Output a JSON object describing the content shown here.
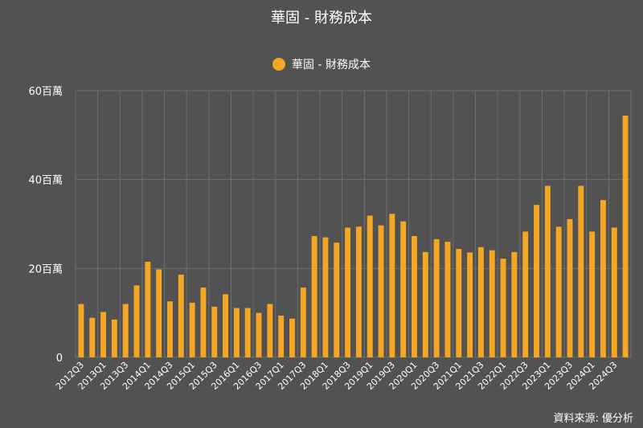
{
  "colors": {
    "background": "#525252",
    "bar": "#F5A623",
    "grid": "#6e6e6e",
    "text": "#ffffff"
  },
  "source": "資料來源: 優分析",
  "legend_icon": "circle-marker",
  "chart_data": {
    "type": "bar",
    "title": "華固 - 財務成本",
    "legend_position": "top-center",
    "grid": true,
    "ylim": [
      0,
      60
    ],
    "yticks": [
      0,
      20,
      40,
      60
    ],
    "ytick_labels": [
      "0",
      "20百萬",
      "40百萬",
      "60百萬"
    ],
    "categories": [
      "2012Q3",
      "2012Q4",
      "2013Q1",
      "2013Q2",
      "2013Q3",
      "2013Q4",
      "2014Q1",
      "2014Q2",
      "2014Q3",
      "2014Q4",
      "2015Q1",
      "2015Q2",
      "2015Q3",
      "2015Q4",
      "2016Q1",
      "2016Q2",
      "2016Q3",
      "2016Q4",
      "2017Q1",
      "2017Q2",
      "2017Q3",
      "2017Q4",
      "2018Q1",
      "2018Q2",
      "2018Q3",
      "2018Q4",
      "2019Q1",
      "2019Q2",
      "2019Q3",
      "2019Q4",
      "2020Q1",
      "2020Q2",
      "2020Q3",
      "2020Q4",
      "2021Q1",
      "2021Q2",
      "2021Q3",
      "2021Q4",
      "2022Q1",
      "2022Q2",
      "2022Q3",
      "2022Q4",
      "2023Q1",
      "2023Q2",
      "2023Q3",
      "2023Q4",
      "2024Q1",
      "2024Q2",
      "2024Q3",
      "2024Q4"
    ],
    "xtick_labels": [
      "2012Q3",
      "2013Q1",
      "2013Q3",
      "2014Q1",
      "2014Q3",
      "2015Q1",
      "2015Q3",
      "2016Q1",
      "2016Q3",
      "2017Q1",
      "2017Q3",
      "2018Q1",
      "2018Q3",
      "2019Q1",
      "2019Q3",
      "2020Q1",
      "2020Q3",
      "2021Q1",
      "2021Q3",
      "2022Q1",
      "2022Q3",
      "2023Q1",
      "2023Q3",
      "2024Q1",
      "2024Q3"
    ],
    "series": [
      {
        "name": "華固 - 財務成本",
        "values": [
          12.0,
          8.9,
          10.2,
          8.5,
          12.0,
          16.2,
          21.5,
          19.8,
          12.6,
          18.6,
          12.3,
          15.7,
          11.4,
          14.2,
          11.1,
          11.1,
          10.0,
          12.0,
          9.4,
          8.7,
          15.7,
          27.3,
          27.0,
          25.8,
          29.2,
          29.4,
          31.9,
          29.7,
          32.3,
          30.6,
          27.3,
          23.7,
          26.6,
          26.0,
          24.4,
          23.6,
          24.8,
          24.1,
          22.2,
          23.7,
          28.3,
          34.3,
          38.6,
          29.4,
          31.1,
          38.6,
          28.3,
          35.4,
          29.2,
          54.4
        ]
      }
    ]
  }
}
